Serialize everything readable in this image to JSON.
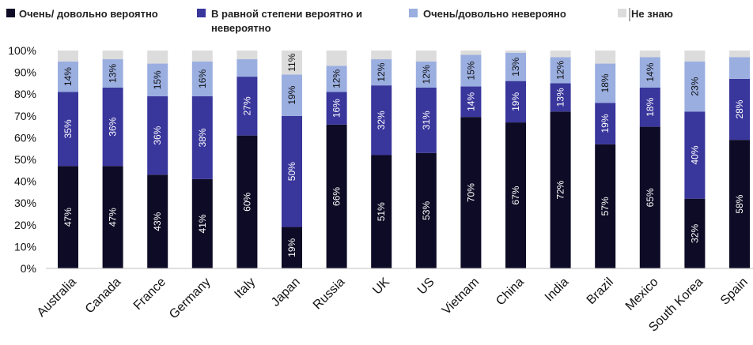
{
  "chart_data": {
    "type": "bar",
    "stacked": true,
    "title": "",
    "xlabel": "",
    "ylabel": "",
    "ylim": [
      0,
      100
    ],
    "yticks": [
      "0%",
      "10%",
      "20%",
      "30%",
      "40%",
      "50%",
      "60%",
      "70%",
      "80%",
      "90%",
      "100%"
    ],
    "categories": [
      "Australia",
      "Canada",
      "France",
      "Germany",
      "Italy",
      "Japan",
      "Russia",
      "UK",
      "US",
      "Vietnam",
      "China",
      "India",
      "Brazil",
      "Mexico",
      "South Korea",
      "Spain"
    ],
    "series": [
      {
        "name": "Очень/ довольно вероятно",
        "color": "#0d0b25",
        "label_color": "#ffffff",
        "values": [
          47,
          47,
          43,
          41,
          60,
          19,
          66,
          51,
          53,
          70,
          67,
          72,
          57,
          65,
          32,
          58
        ],
        "labels": [
          "47%",
          "47%",
          "43%",
          "41%",
          "60%",
          "19%",
          "66%",
          "51%",
          "53%",
          "70%",
          "67%",
          "72%",
          "57%",
          "65%",
          "32%",
          "58%"
        ],
        "draw_height": [
          47,
          47,
          43,
          41,
          61,
          19,
          66,
          52,
          53,
          69.5,
          67,
          72,
          57,
          65,
          32,
          59
        ]
      },
      {
        "name": "В равной степени вероятно и невероятно",
        "color": "#39369c",
        "label_color": "#ffffff",
        "values": [
          35,
          36,
          36,
          38,
          27,
          50,
          16,
          32,
          31,
          14,
          19,
          13,
          19,
          18,
          40,
          28
        ],
        "labels": [
          "35%",
          "36%",
          "36%",
          "38%",
          "27%",
          "50%",
          "16%",
          "32%",
          "31%",
          "14%",
          "19%",
          "13%",
          "19%",
          "18%",
          "40%",
          "28%"
        ],
        "draw_height": [
          34,
          36,
          36,
          38,
          27,
          51,
          15,
          32,
          30,
          14,
          19,
          13,
          19,
          18,
          40,
          28
        ]
      },
      {
        "name": "Очень/довольно неверояно",
        "color": "#9aaee0",
        "label_color": "#111111",
        "values": [
          14,
          13,
          15,
          16,
          8,
          19,
          12,
          12,
          12,
          15,
          13,
          12,
          18,
          14,
          23,
          10
        ],
        "labels": [
          "14%",
          "13%",
          "15%",
          "16%",
          "",
          "19%",
          "12%",
          "12%",
          "12%",
          "15%",
          "13%",
          "12%",
          "18%",
          "14%",
          "23%",
          ""
        ],
        "draw_height": [
          14,
          13,
          15,
          16,
          8,
          19,
          12,
          12,
          12,
          14.5,
          13,
          12,
          18,
          14,
          23,
          10
        ]
      },
      {
        "name": "Не знаю",
        "color": "#dcdcdc",
        "label_color": "#111111",
        "values": [
          5,
          4,
          6,
          5,
          4,
          11,
          7,
          4,
          5,
          2,
          1,
          3,
          6,
          3,
          5,
          3
        ],
        "labels": [
          "",
          "",
          "",
          "",
          "",
          "11%",
          "",
          "",
          "",
          "",
          "",
          "",
          "",
          "",
          "",
          ""
        ],
        "draw_height": [
          5,
          4,
          6,
          5,
          4,
          11,
          7,
          4,
          5,
          2,
          1,
          3,
          6,
          3,
          5,
          3
        ]
      }
    ],
    "legend": {
      "placement": "top",
      "entries": [
        {
          "lines": [
            "Очень/ довольно вероятно"
          ],
          "color": "#0d0b25"
        },
        {
          "lines": [
            "В равной степени вероятно и",
            "невероятно"
          ],
          "color": "#39369c"
        },
        {
          "lines": [
            "Очень/довольно неверояно"
          ],
          "color": "#9aaee0"
        },
        {
          "lines": [
            "Не знаю"
          ],
          "color": "#dcdcdc"
        }
      ]
    },
    "grid": false
  }
}
